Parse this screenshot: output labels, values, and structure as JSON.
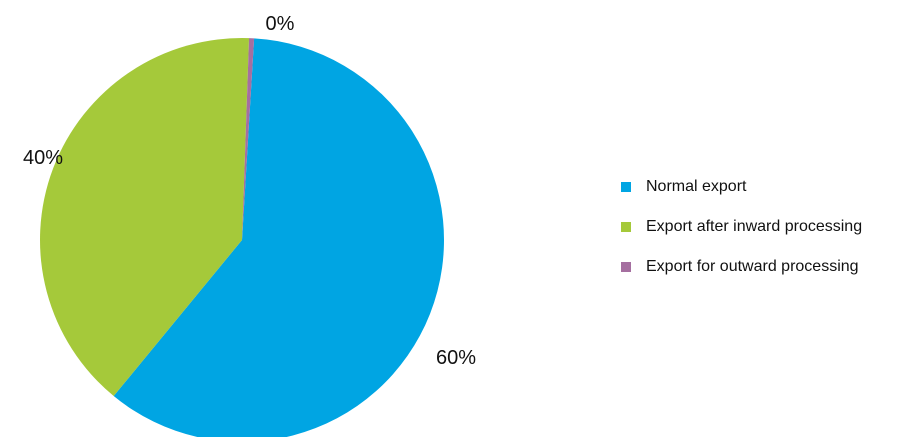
{
  "chart_data": {
    "type": "pie",
    "title": "",
    "slices": [
      {
        "label": "Normal export",
        "value": 60,
        "value_label": "60%",
        "color": "#00a5e3"
      },
      {
        "label": "Export after inward processing",
        "value": 39.6,
        "value_label": "40%",
        "color": "#a5c93a"
      },
      {
        "label": "Export for outward processing",
        "value": 0.4,
        "value_label": "0%",
        "color": "#a56fa0"
      }
    ],
    "legend": {
      "placement": "right",
      "items": [
        "Normal export",
        "Export after inward processing",
        "Export for outward processing"
      ]
    }
  }
}
